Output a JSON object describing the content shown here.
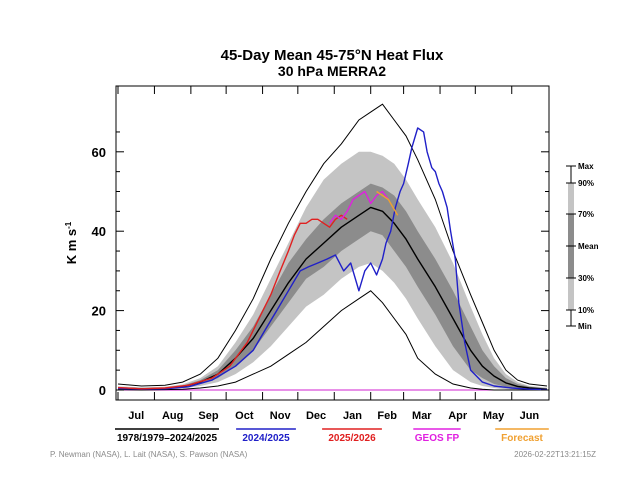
{
  "chart_data": {
    "type": "line",
    "title": "45-Day Mean 45-75°N Heat Flux",
    "subtitle": "30 hPa   MERRA2",
    "ylabel": "K m s",
    "ylabel_sup": "-1",
    "ylim": [
      0,
      70
    ],
    "yticks": [
      0,
      20,
      40,
      60
    ],
    "months": [
      "Jul",
      "Aug",
      "Sep",
      "Oct",
      "Nov",
      "Dec",
      "Jan",
      "Feb",
      "Mar",
      "Apr",
      "May",
      "Jun"
    ],
    "x_days": [
      0,
      31,
      62,
      92,
      123,
      153,
      184,
      215,
      243,
      274,
      304,
      335
    ],
    "percentile_scale": {
      "labels": [
        "Max",
        "90%",
        "70%",
        "Mean",
        "30%",
        "10%",
        "Min"
      ],
      "band_colors": [
        "#bfbfbf",
        "#8a8a8a",
        "#8a8a8a",
        "#bfbfbf"
      ]
    },
    "climatology": {
      "x": [
        0,
        20,
        40,
        55,
        70,
        85,
        100,
        115,
        130,
        145,
        160,
        175,
        190,
        205,
        215,
        225,
        235,
        245,
        255,
        270,
        285,
        300,
        310,
        320,
        330,
        340,
        350,
        365
      ],
      "mean": [
        0.5,
        0.3,
        0.4,
        0.8,
        2,
        4,
        8,
        13,
        20,
        27,
        33,
        37,
        41,
        44,
        46,
        45,
        42,
        38,
        33,
        26,
        18,
        10,
        6,
        3.5,
        1.8,
        0.9,
        0.5,
        0.2
      ],
      "p10": [
        0.2,
        0.1,
        0.2,
        0.4,
        1,
        2,
        4,
        7,
        11,
        16,
        21,
        24,
        28,
        31,
        32,
        30,
        27,
        23,
        18,
        11,
        5,
        2,
        1,
        0.5,
        0.2,
        0.1,
        0,
        0
      ],
      "p30": [
        0.35,
        0.2,
        0.3,
        0.6,
        1.5,
        3,
        6,
        10,
        16,
        22,
        28,
        31,
        35,
        38,
        40,
        39,
        35,
        31,
        26,
        19,
        11,
        5,
        3,
        1.5,
        0.8,
        0.4,
        0.2,
        0.1
      ],
      "p70": [
        0.7,
        0.5,
        0.6,
        1.1,
        2.5,
        5,
        10,
        16,
        24,
        32,
        38,
        43,
        47,
        50,
        52,
        51,
        49,
        45,
        40,
        33,
        25,
        16,
        10,
        6,
        3,
        1.5,
        0.8,
        0.4
      ],
      "p90": [
        0.9,
        0.7,
        0.8,
        1.4,
        3,
        6,
        12,
        19,
        28,
        37,
        46,
        53,
        57,
        60,
        60,
        59,
        57,
        53,
        48,
        41,
        32,
        21,
        14,
        8,
        4,
        2,
        1,
        0.6
      ],
      "min": [
        0.1,
        0,
        0.1,
        0.2,
        0.5,
        1,
        2,
        4,
        6,
        9,
        12,
        16,
        20,
        23,
        25,
        22,
        18,
        14,
        8,
        4,
        1.5,
        0.5,
        0.2,
        0,
        0,
        0,
        0,
        0
      ],
      "max": [
        1.5,
        1,
        1.2,
        2,
        4,
        8,
        15,
        23,
        33,
        42,
        50,
        57,
        62,
        68,
        70,
        72,
        68,
        64,
        58,
        48,
        35,
        24,
        17,
        10,
        5,
        2.5,
        1.5,
        1
      ]
    },
    "series": [
      {
        "name": "1978/1979–2024/2025",
        "color": "#000000",
        "ref": "mean"
      },
      {
        "name": "2024/2025",
        "color": "#2020c8",
        "x": [
          0,
          20,
          40,
          60,
          80,
          100,
          115,
          125,
          135,
          145,
          155,
          162,
          170,
          178,
          185,
          192,
          198,
          205,
          210,
          215,
          220,
          225,
          228,
          232,
          236,
          240,
          243,
          247,
          250,
          255,
          260,
          263,
          267,
          270,
          273,
          276,
          280,
          283,
          287,
          290,
          295,
          300,
          310,
          320,
          335,
          350,
          365
        ],
        "y": [
          0.4,
          0.2,
          0.3,
          0.8,
          2.5,
          6,
          10,
          15,
          20,
          25,
          30,
          31,
          32,
          33,
          34,
          30,
          32,
          25,
          30,
          32,
          29,
          33,
          37,
          40,
          46,
          50,
          52,
          57,
          61,
          66,
          65,
          60,
          56,
          55,
          52,
          50,
          46,
          40,
          33,
          22,
          12,
          5,
          2,
          1,
          0.5,
          0.2,
          0.1
        ]
      },
      {
        "name": "2025/2026",
        "color": "#e02020",
        "x": [
          0,
          20,
          40,
          60,
          80,
          95,
          110,
          120,
          130,
          138,
          145,
          150,
          155,
          160,
          165,
          170,
          175,
          180,
          185,
          190,
          195
        ],
        "y": [
          0.6,
          0.3,
          0.5,
          1.2,
          3,
          6,
          12,
          18,
          24,
          30,
          35,
          39,
          42,
          42,
          43,
          43,
          42,
          41,
          43,
          44,
          43
        ]
      },
      {
        "name": "GEOS FP",
        "color": "#e020e0",
        "x": [
          180,
          185,
          190,
          195,
          200,
          205,
          210,
          215,
          220,
          225,
          230
        ],
        "y": [
          42,
          44,
          43,
          45,
          48,
          49,
          50,
          47,
          49,
          50,
          48
        ]
      },
      {
        "name": "Forecast",
        "color": "#f0a030",
        "x": [
          220,
          225,
          230,
          234,
          238
        ],
        "y": [
          50,
          49,
          48,
          46,
          44
        ]
      }
    ]
  },
  "legend": [
    {
      "label": "1978/1979–2024/2025",
      "color": "#000000"
    },
    {
      "label": "2024/2025",
      "color": "#2020c8"
    },
    {
      "label": "2025/2026",
      "color": "#e02020"
    },
    {
      "label": "GEOS FP",
      "color": "#e020e0"
    },
    {
      "label": "Forecast",
      "color": "#f0a030"
    }
  ],
  "credits": "P. Newman (NASA), L. Lait (NASA), S. Pawson (NASA)",
  "timestamp": "2026-02-22T13:21:15Z"
}
